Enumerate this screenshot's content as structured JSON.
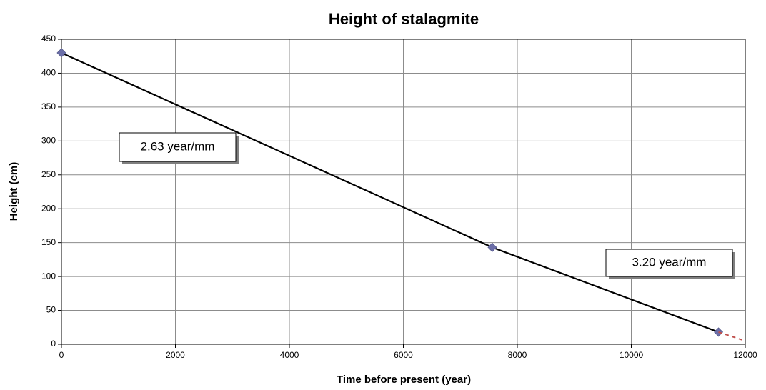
{
  "chart_data": {
    "type": "line",
    "title": "Height of stalagmite",
    "x_label": "Time before present (year)",
    "y_label": "Height (cm)",
    "series": [
      {
        "color": "#000000",
        "marker_color": "#6b6ea8",
        "style": "solid",
        "markers": true,
        "x": [
          0,
          7560,
          11530
        ],
        "values": [
          430,
          143,
          18
        ]
      },
      {
        "color": "#c0504d",
        "style": "dashed",
        "markers": false,
        "x": [
          11530,
          12000
        ],
        "values": [
          18,
          5
        ]
      }
    ],
    "annotations": [
      "2.63 year/mm",
      "3.20 year/mm"
    ],
    "xlim": [
      0,
      12000
    ],
    "xticks": [
      0,
      2000,
      4000,
      6000,
      8000,
      10000,
      12000
    ],
    "ylim": [
      0,
      450
    ],
    "yticks": [
      0,
      50,
      100,
      150,
      200,
      250,
      300,
      350,
      400,
      450
    ],
    "grid": true
  }
}
